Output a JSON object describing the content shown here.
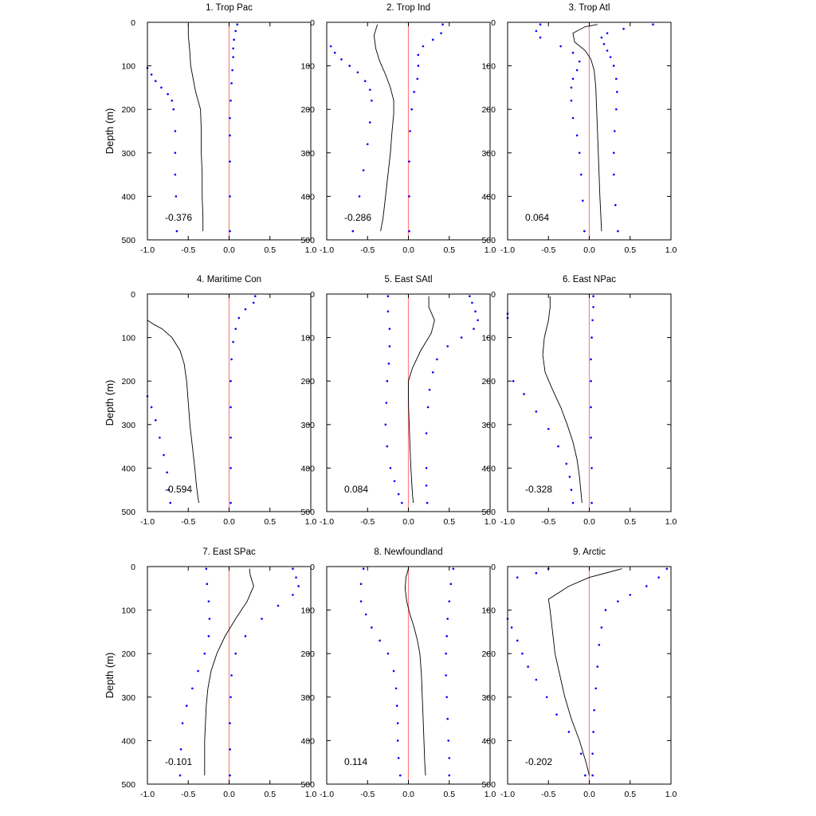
{
  "figure": {
    "ylabel": "Depth (m)"
  },
  "colors": {
    "mean_line": "#000000",
    "spread_dots": "#0000ff",
    "zero_line": "#ff8080",
    "frame": "#000000"
  },
  "chart_data": [
    {
      "type": "line",
      "title": "1. Trop Pac",
      "xlim": [
        -1.0,
        1.0
      ],
      "ylim": [
        500,
        0
      ],
      "xticks": [
        "-1.0",
        "-0.5",
        "0.0",
        "0.5",
        "1.0"
      ],
      "yticks": [
        "0",
        "100",
        "200",
        "300",
        "400",
        "500"
      ],
      "annotation": "-0.376",
      "mean": {
        "x": [
          -0.5,
          -0.5,
          -0.48,
          -0.47,
          -0.44,
          -0.41,
          -0.38,
          -0.35,
          -0.34,
          -0.34,
          -0.33,
          -0.33,
          -0.32,
          -0.32
        ],
        "y": [
          5,
          30,
          70,
          100,
          130,
          160,
          180,
          200,
          250,
          300,
          350,
          400,
          450,
          480
        ]
      },
      "lower": {
        "x": [
          -1.0,
          -0.95,
          -0.9,
          -0.83,
          -0.75,
          -0.7,
          -0.68,
          -0.66,
          -0.66,
          -0.66,
          -0.65,
          -0.64
        ],
        "y": [
          105,
          120,
          135,
          150,
          165,
          180,
          200,
          250,
          300,
          350,
          400,
          480
        ]
      },
      "upper": {
        "x": [
          0.1,
          0.08,
          0.06,
          0.05,
          0.05,
          0.04,
          0.03,
          0.02,
          0.01,
          0.01,
          0.01,
          0.01,
          0.01
        ],
        "y": [
          5,
          20,
          40,
          60,
          80,
          110,
          140,
          180,
          220,
          260,
          320,
          400,
          480
        ]
      }
    },
    {
      "type": "line",
      "title": "2. Trop Ind",
      "xlim": [
        -1.0,
        1.0
      ],
      "ylim": [
        500,
        0
      ],
      "xticks": [
        "-1.0",
        "-0.5",
        "0.0",
        "0.5",
        "1.0"
      ],
      "yticks": [
        "0",
        "100",
        "200",
        "300",
        "400",
        "500"
      ],
      "annotation": "-0.286",
      "mean": {
        "x": [
          -0.38,
          -0.42,
          -0.4,
          -0.35,
          -0.28,
          -0.22,
          -0.18,
          -0.18,
          -0.2,
          -0.22,
          -0.25,
          -0.28,
          -0.31,
          -0.34
        ],
        "y": [
          5,
          30,
          60,
          90,
          120,
          150,
          180,
          210,
          250,
          300,
          350,
          400,
          450,
          480
        ]
      },
      "lower": {
        "x": [
          -0.95,
          -0.9,
          -0.82,
          -0.72,
          -0.62,
          -0.53,
          -0.47,
          -0.45,
          -0.47,
          -0.5,
          -0.55,
          -0.6,
          -0.68
        ],
        "y": [
          55,
          70,
          85,
          100,
          115,
          135,
          155,
          180,
          230,
          280,
          340,
          400,
          480
        ]
      },
      "upper": {
        "x": [
          0.42,
          0.4,
          0.3,
          0.18,
          0.12,
          0.12,
          0.11,
          0.07,
          0.04,
          0.02,
          0.01,
          0.01,
          0.01
        ],
        "y": [
          5,
          25,
          40,
          55,
          75,
          100,
          130,
          160,
          200,
          250,
          320,
          400,
          480
        ]
      }
    },
    {
      "type": "line",
      "title": "3. Trop Atl",
      "xlim": [
        -1.0,
        1.0
      ],
      "ylim": [
        500,
        0
      ],
      "xticks": [
        "-1.0",
        "-0.5",
        "0.0",
        "0.5",
        "1.0"
      ],
      "yticks": [
        "0",
        "100",
        "200",
        "300",
        "400",
        "500"
      ],
      "annotation": "0.064",
      "mean": {
        "x": [
          0.1,
          -0.05,
          -0.2,
          -0.18,
          -0.05,
          0.02,
          0.06,
          0.08,
          0.09,
          0.1,
          0.11,
          0.12,
          0.13,
          0.15
        ],
        "y": [
          5,
          10,
          25,
          45,
          65,
          85,
          110,
          150,
          200,
          250,
          300,
          350,
          400,
          480
        ]
      },
      "lower": {
        "x": [
          -0.6,
          -0.65,
          -0.6,
          -0.35,
          -0.2,
          -0.12,
          -0.15,
          -0.2,
          -0.22,
          -0.22,
          -0.2,
          -0.15,
          -0.12,
          -0.1,
          -0.08,
          -0.06
        ],
        "y": [
          5,
          20,
          35,
          55,
          70,
          90,
          110,
          130,
          150,
          180,
          220,
          260,
          300,
          350,
          410,
          480
        ]
      },
      "upper": {
        "x": [
          0.78,
          0.42,
          0.22,
          0.15,
          0.18,
          0.22,
          0.26,
          0.3,
          0.33,
          0.34,
          0.33,
          0.31,
          0.3,
          0.3,
          0.32,
          0.35
        ],
        "y": [
          5,
          15,
          25,
          35,
          50,
          65,
          80,
          100,
          130,
          160,
          200,
          250,
          300,
          350,
          420,
          480
        ]
      }
    },
    {
      "type": "line",
      "title": "4. Maritime Con",
      "xlim": [
        -1.0,
        1.0
      ],
      "ylim": [
        500,
        0
      ],
      "xticks": [
        "-1.0",
        "-0.5",
        "0.0",
        "0.5",
        "1.0"
      ],
      "yticks": [
        "0",
        "100",
        "200",
        "300",
        "400",
        "500"
      ],
      "annotation": "-0.594",
      "mean": {
        "x": [
          -1.0,
          -0.92,
          -0.82,
          -0.7,
          -0.6,
          -0.55,
          -0.52,
          -0.5,
          -0.48,
          -0.45,
          -0.42,
          -0.4,
          -0.38,
          -0.37
        ],
        "y": [
          60,
          70,
          80,
          100,
          130,
          160,
          200,
          250,
          300,
          350,
          400,
          440,
          470,
          480
        ]
      },
      "lower": {
        "x": [
          -1.0,
          -0.95,
          -0.9,
          -0.85,
          -0.8,
          -0.76,
          -0.74,
          -0.72
        ],
        "y": [
          235,
          260,
          290,
          330,
          370,
          410,
          450,
          480
        ]
      },
      "upper": {
        "x": [
          0.32,
          0.3,
          0.2,
          0.12,
          0.08,
          0.05,
          0.03,
          0.02,
          0.02,
          0.02,
          0.02,
          0.02
        ],
        "y": [
          5,
          20,
          35,
          55,
          80,
          110,
          150,
          200,
          260,
          330,
          400,
          480
        ]
      }
    },
    {
      "type": "line",
      "title": "5. East SAtl",
      "xlim": [
        -1.0,
        1.0
      ],
      "ylim": [
        500,
        0
      ],
      "xticks": [
        "-1.0",
        "-0.5",
        "0.0",
        "0.5",
        "1.0"
      ],
      "yticks": [
        "0",
        "100",
        "200",
        "300",
        "400",
        "500"
      ],
      "annotation": "0.084",
      "mean": {
        "x": [
          0.25,
          0.25,
          0.32,
          0.28,
          0.15,
          0.05,
          0.0,
          0.0,
          0.01,
          0.02,
          0.03,
          0.04,
          0.05,
          0.06
        ],
        "y": [
          5,
          30,
          60,
          90,
          130,
          170,
          200,
          250,
          300,
          350,
          400,
          430,
          460,
          480
        ]
      },
      "lower": {
        "x": [
          -0.25,
          -0.25,
          -0.23,
          -0.23,
          -0.24,
          -0.26,
          -0.27,
          -0.28,
          -0.26,
          -0.22,
          -0.17,
          -0.12,
          -0.08
        ],
        "y": [
          5,
          40,
          80,
          120,
          160,
          200,
          250,
          300,
          350,
          400,
          430,
          460,
          480
        ]
      },
      "upper": {
        "x": [
          0.75,
          0.78,
          0.82,
          0.85,
          0.8,
          0.65,
          0.48,
          0.35,
          0.3,
          0.26,
          0.24,
          0.22,
          0.22,
          0.22,
          0.23
        ],
        "y": [
          5,
          20,
          40,
          60,
          80,
          100,
          120,
          150,
          180,
          220,
          260,
          320,
          400,
          440,
          480
        ]
      }
    },
    {
      "type": "line",
      "title": "6. East NPac",
      "xlim": [
        -1.0,
        1.0
      ],
      "ylim": [
        500,
        0
      ],
      "xticks": [
        "-1.0",
        "-0.5",
        "0.0",
        "0.5",
        "1.0"
      ],
      "yticks": [
        "0",
        "100",
        "200",
        "300",
        "400",
        "500"
      ],
      "annotation": "-0.328",
      "mean": {
        "x": [
          -0.48,
          -0.48,
          -0.5,
          -0.55,
          -0.57,
          -0.54,
          -0.45,
          -0.35,
          -0.27,
          -0.2,
          -0.15,
          -0.12,
          -0.1,
          -0.09
        ],
        "y": [
          5,
          30,
          60,
          100,
          140,
          180,
          220,
          260,
          300,
          340,
          380,
          420,
          460,
          480
        ]
      },
      "lower": {
        "x": [
          -1.0,
          -1.0,
          -0.93,
          -0.8,
          -0.65,
          -0.5,
          -0.38,
          -0.28,
          -0.24,
          -0.22,
          -0.2
        ],
        "y": [
          45,
          55,
          200,
          230,
          270,
          310,
          350,
          390,
          420,
          450,
          480
        ]
      },
      "upper": {
        "x": [
          0.05,
          0.05,
          0.04,
          0.03,
          0.02,
          0.02,
          0.02,
          0.02,
          0.03,
          0.03
        ],
        "y": [
          5,
          30,
          60,
          100,
          150,
          200,
          260,
          330,
          400,
          480
        ]
      }
    },
    {
      "type": "line",
      "title": "7. East SPac",
      "xlim": [
        -1.0,
        1.0
      ],
      "ylim": [
        500,
        0
      ],
      "xticks": [
        "-1.0",
        "-0.5",
        "0.0",
        "0.5",
        "1.0"
      ],
      "yticks": [
        "0",
        "100",
        "200",
        "300",
        "400",
        "500"
      ],
      "annotation": "-0.101",
      "mean": {
        "x": [
          0.25,
          0.26,
          0.3,
          0.22,
          0.08,
          -0.05,
          -0.15,
          -0.22,
          -0.26,
          -0.28,
          -0.29,
          -0.3,
          -0.3,
          -0.3
        ],
        "y": [
          5,
          20,
          45,
          80,
          120,
          160,
          200,
          240,
          280,
          320,
          360,
          400,
          440,
          480
        ]
      },
      "lower": {
        "x": [
          -0.28,
          -0.27,
          -0.25,
          -0.24,
          -0.25,
          -0.3,
          -0.38,
          -0.45,
          -0.52,
          -0.57,
          -0.59,
          -0.6
        ],
        "y": [
          5,
          40,
          80,
          120,
          160,
          200,
          240,
          280,
          320,
          360,
          420,
          480
        ]
      },
      "upper": {
        "x": [
          0.78,
          0.82,
          0.85,
          0.78,
          0.6,
          0.4,
          0.2,
          0.08,
          0.03,
          0.02,
          0.01,
          0.01,
          0.01
        ],
        "y": [
          5,
          25,
          45,
          65,
          90,
          120,
          160,
          200,
          250,
          300,
          360,
          420,
          480
        ]
      }
    },
    {
      "type": "line",
      "title": "8. Newfoundland",
      "xlim": [
        -1.0,
        1.0
      ],
      "ylim": [
        500,
        0
      ],
      "xticks": [
        "-1.0",
        "-0.5",
        "0.0",
        "0.5",
        "1.0"
      ],
      "yticks": [
        "0",
        "100",
        "200",
        "300",
        "400",
        "500"
      ],
      "annotation": "0.114",
      "mean": {
        "x": [
          0.0,
          -0.03,
          -0.04,
          -0.02,
          0.02,
          0.07,
          0.11,
          0.14,
          0.16,
          0.17,
          0.18,
          0.19,
          0.2,
          0.21
        ],
        "y": [
          5,
          25,
          50,
          80,
          110,
          140,
          170,
          200,
          250,
          300,
          350,
          400,
          450,
          480
        ]
      },
      "lower": {
        "x": [
          -0.55,
          -0.58,
          -0.58,
          -0.52,
          -0.45,
          -0.35,
          -0.25,
          -0.18,
          -0.15,
          -0.14,
          -0.13,
          -0.13,
          -0.12,
          -0.1
        ],
        "y": [
          5,
          40,
          80,
          110,
          140,
          170,
          200,
          240,
          280,
          320,
          360,
          400,
          440,
          480
        ]
      },
      "upper": {
        "x": [
          0.55,
          0.52,
          0.5,
          0.48,
          0.47,
          0.46,
          0.46,
          0.47,
          0.48,
          0.49,
          0.5,
          0.5
        ],
        "y": [
          5,
          40,
          80,
          120,
          160,
          200,
          250,
          300,
          350,
          400,
          440,
          480
        ]
      }
    },
    {
      "type": "line",
      "title": "9. Arctic",
      "xlim": [
        -1.0,
        1.0
      ],
      "ylim": [
        500,
        0
      ],
      "xticks": [
        "-1.0",
        "-0.5",
        "0.0",
        "0.5",
        "1.0"
      ],
      "yticks": [
        "0",
        "100",
        "200",
        "300",
        "400",
        "500"
      ],
      "annotation": "-0.202",
      "mean": {
        "x": [
          0.4,
          0.0,
          -0.25,
          -0.5,
          -0.48,
          -0.45,
          -0.42,
          -0.36,
          -0.3,
          -0.22,
          -0.12,
          -0.04,
          0.0
        ],
        "y": [
          5,
          25,
          45,
          75,
          100,
          150,
          200,
          250,
          300,
          350,
          400,
          450,
          480
        ]
      },
      "lower": {
        "x": [
          -0.5,
          -0.65,
          -0.88,
          -1.0,
          -0.95,
          -0.88,
          -0.82,
          -0.75,
          -0.65,
          -0.52,
          -0.4,
          -0.25,
          -0.1,
          -0.05
        ],
        "y": [
          5,
          15,
          25,
          120,
          140,
          170,
          200,
          230,
          260,
          300,
          340,
          380,
          430,
          480
        ]
      },
      "upper": {
        "x": [
          0.95,
          0.85,
          0.7,
          0.5,
          0.35,
          0.2,
          0.15,
          0.12,
          0.1,
          0.08,
          0.06,
          0.05,
          0.04,
          0.04
        ],
        "y": [
          5,
          25,
          45,
          65,
          80,
          100,
          140,
          180,
          230,
          280,
          330,
          380,
          430,
          480
        ]
      }
    }
  ]
}
